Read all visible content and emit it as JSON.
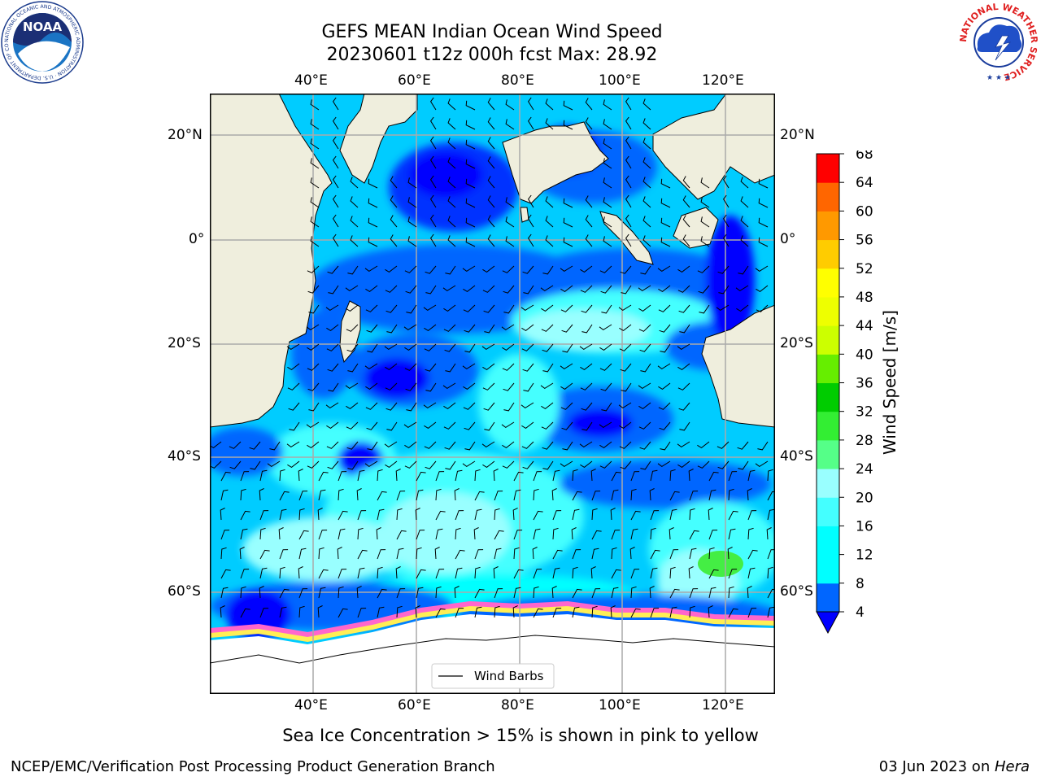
{
  "title": {
    "line1": "GEFS MEAN Indian Ocean Wind Speed",
    "line2": "20230601 t12z 000h fcst   Max: 28.92"
  },
  "axes": {
    "lon_labels": [
      "40°E",
      "60°E",
      "80°E",
      "100°E",
      "120°E"
    ],
    "lat_labels": [
      "20°N",
      "0°",
      "20°S",
      "40°S",
      "60°S"
    ],
    "lon_values": [
      40,
      60,
      80,
      100,
      120
    ],
    "lat_values": [
      20,
      0,
      -20,
      -40,
      -60
    ],
    "lon_range": [
      20,
      130
    ],
    "lat_range": [
      -74,
      28
    ],
    "grid": true
  },
  "legend": {
    "label": "Wind Barbs",
    "placement": "bottom-center"
  },
  "colorbar": {
    "label": "Wind Speed [m/s]",
    "ticks": [
      "4",
      "8",
      "12",
      "16",
      "20",
      "24",
      "28",
      "32",
      "36",
      "40",
      "44",
      "48",
      "52",
      "56",
      "60",
      "64",
      "68"
    ],
    "colors": [
      "#0066ff",
      "#00ccff",
      "#00ffff",
      "#44ffff",
      "#99ffff",
      "#55ff88",
      "#33ee33",
      "#00cc00",
      "#66ee00",
      "#bbff00",
      "#ddff00",
      "#ffff00",
      "#ffee00",
      "#ffcc00",
      "#ffaa00",
      "#ff8800",
      "#ff5500",
      "#ff2200",
      "#ff0000"
    ],
    "under_color": "#0000ff"
  },
  "subtitle": "Sea Ice Concentration > 15% is shown in pink to yellow",
  "footer": {
    "left": "NCEP/EMC/Verification Post Processing Product Generation Branch",
    "right_date": "03 Jun 2023 on ",
    "right_host": "Hera"
  },
  "logos": {
    "noaa": {
      "text": "NOAA",
      "ring": "NATIONAL OCEANIC AND ATMOSPHERIC ADMINISTRATION · U.S. DEPARTMENT OF COMMERCE"
    },
    "nws": {
      "ring": "NATIONAL WEATHER SERVICE"
    }
  },
  "colors": {
    "land": "#efeedd",
    "ice": "#ffffff",
    "ice_edge": [
      "#ff66cc",
      "#ffaa44",
      "#ffee55"
    ],
    "ocean_dark": "#0000ff",
    "ocean_mid": "#0066ff",
    "ocean_light": "#00ccff",
    "ocean_pale": "#88ffff",
    "green_patch": "#44ee44"
  }
}
